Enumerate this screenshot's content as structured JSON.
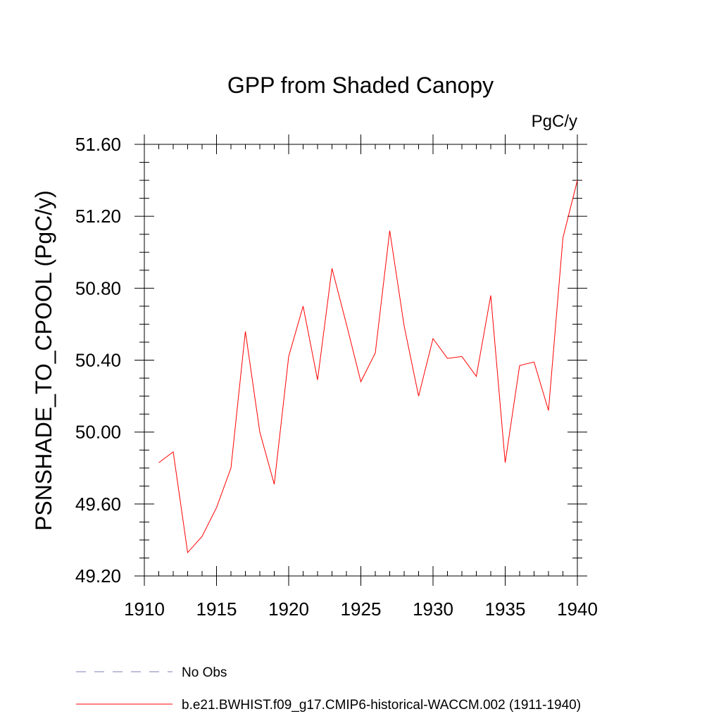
{
  "chart_data": {
    "type": "line",
    "title": "GPP from Shaded Canopy",
    "units": "PgC/y",
    "ylabel": "PSNSHADE_TO_CPOOL  (PgC/y)",
    "xlabel": "",
    "xlim": [
      1910,
      1940
    ],
    "ylim": [
      49.2,
      51.6
    ],
    "xticks": [
      1910,
      1915,
      1920,
      1925,
      1930,
      1935,
      1940
    ],
    "yticks": [
      "49.20",
      "49.60",
      "50.00",
      "50.40",
      "50.80",
      "51.20",
      "51.60"
    ],
    "ytick_values": [
      49.2,
      49.6,
      50.0,
      50.4,
      50.8,
      51.2,
      51.6
    ],
    "series": [
      {
        "name": "b.e21.BWHIST.f09_g17.CMIP6-historical-WACCM.002 (1911-1940)",
        "color": "#ff0000",
        "x": [
          1911,
          1912,
          1913,
          1914,
          1915,
          1916,
          1917,
          1918,
          1919,
          1920,
          1921,
          1922,
          1923,
          1924,
          1925,
          1926,
          1927,
          1928,
          1929,
          1930,
          1931,
          1932,
          1933,
          1934,
          1935,
          1936,
          1937,
          1938,
          1939,
          1940
        ],
        "y": [
          49.83,
          49.89,
          49.33,
          49.42,
          49.58,
          49.8,
          50.56,
          50.0,
          49.71,
          50.42,
          50.7,
          50.29,
          50.91,
          50.6,
          50.28,
          50.44,
          51.12,
          50.59,
          50.2,
          50.52,
          50.41,
          50.42,
          50.31,
          50.76,
          49.83,
          50.37,
          50.39,
          50.12,
          51.08,
          51.4
        ]
      }
    ],
    "legend": {
      "placement": "bottom-left",
      "entries": [
        {
          "label": "No Obs",
          "style": "dashed",
          "color": "#7b7bb8"
        },
        {
          "label": "b.e21.BWHIST.f09_g17.CMIP6-historical-WACCM.002 (1911-1940)",
          "style": "solid",
          "color": "#ff0000"
        }
      ]
    },
    "grid": false
  }
}
